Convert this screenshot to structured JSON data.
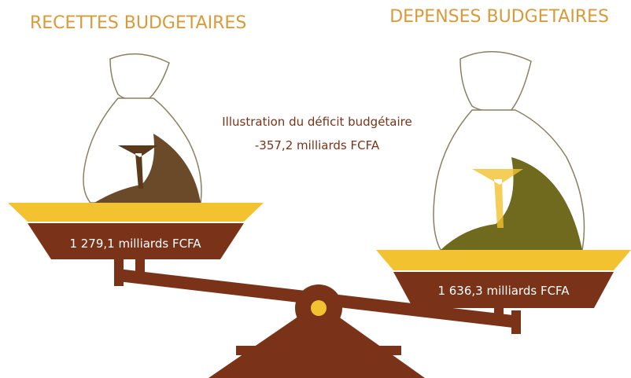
{
  "left": {
    "title": "RECETTES BUDGETAIRES",
    "amount": "1 279,1 milliards FCFA"
  },
  "right": {
    "title": "DEPENSES BUDGETAIRES",
    "amount": "1 636,3 milliards FCFA"
  },
  "center": {
    "caption": "Illustration du déficit budgétaire",
    "deficit": "-357,2 milliards FCFA"
  }
}
